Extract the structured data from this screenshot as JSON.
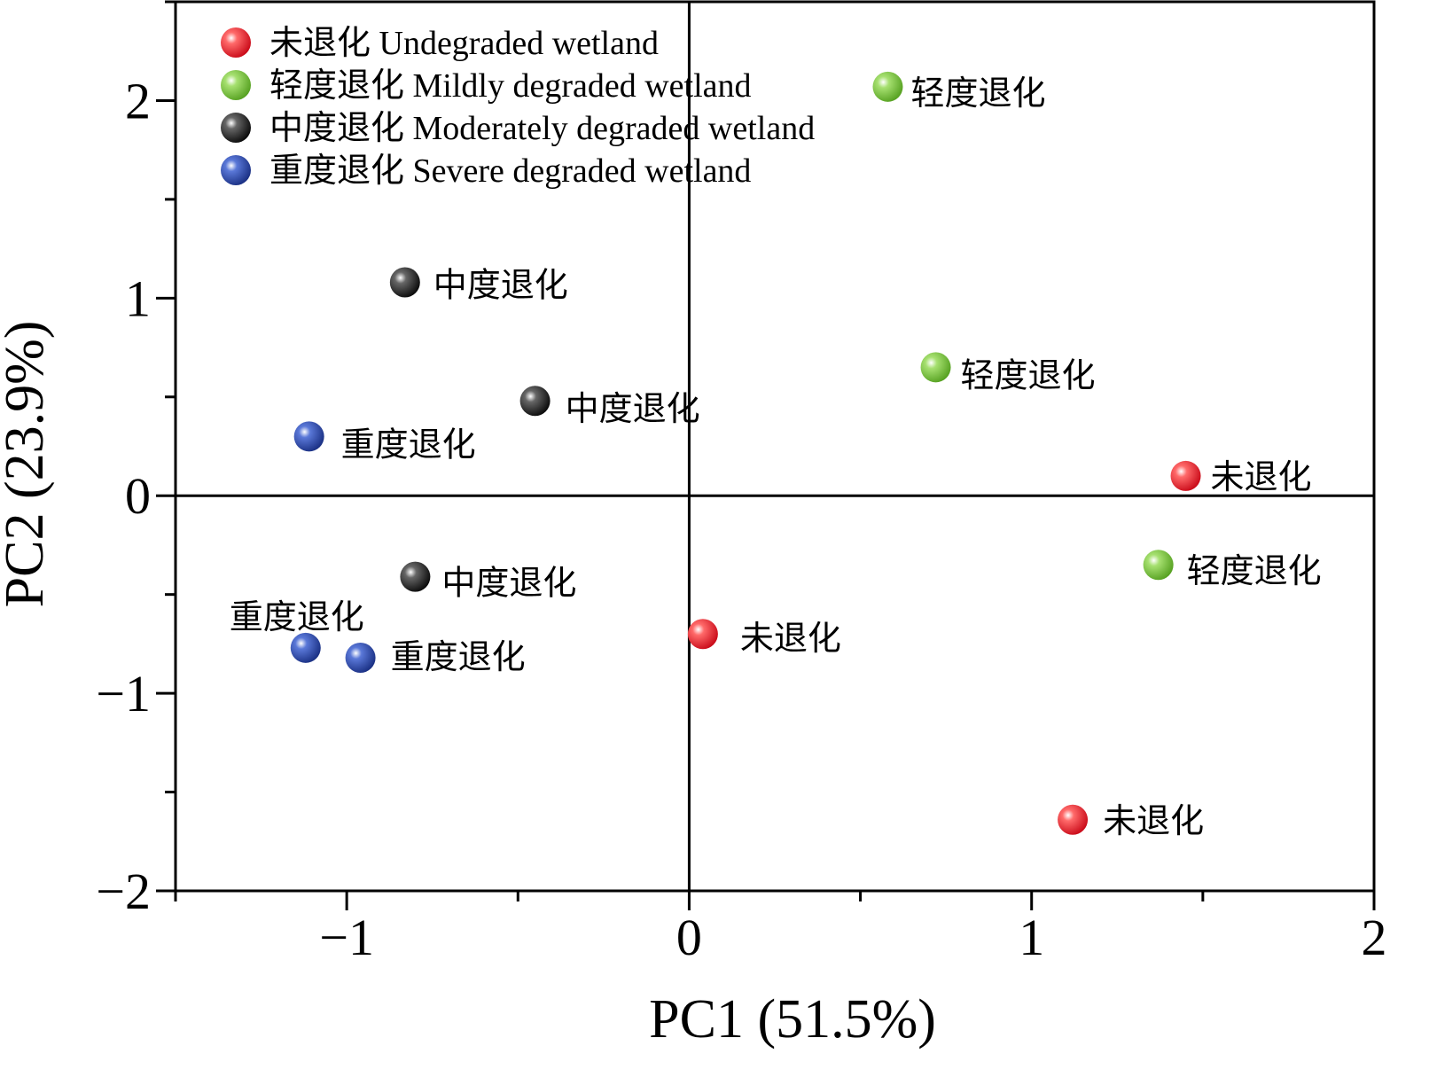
{
  "chart_data": {
    "type": "scatter",
    "xlabel": "PC1 (51.5%)",
    "ylabel": "PC2 (23.9%)",
    "xlim": [
      -1.5,
      2
    ],
    "ylim": [
      -2,
      2.5
    ],
    "x_ticks": [
      -1,
      0,
      1,
      2
    ],
    "x_tick_labels": [
      "−1",
      "0",
      "1",
      "2"
    ],
    "y_ticks": [
      -2,
      -1,
      0,
      1,
      2
    ],
    "y_tick_labels": [
      "−2",
      "−1",
      "0",
      "1",
      "2"
    ],
    "reference_lines": {
      "x": 0,
      "y": 0
    },
    "legend_position": "top-left",
    "series": [
      {
        "name": "未退化 Undegraded wetland",
        "short_name": "未退化",
        "color": "#e8141c",
        "points": [
          {
            "x": 1.45,
            "y": 0.1,
            "label": "未退化"
          },
          {
            "x": 0.04,
            "y": -0.7,
            "label": "未退化"
          },
          {
            "x": 1.12,
            "y": -1.64,
            "label": "未退化"
          }
        ]
      },
      {
        "name": "轻度退化 Mildly degraded wetland",
        "short_name": "轻度退化",
        "color": "#6cbe2c",
        "points": [
          {
            "x": 0.58,
            "y": 2.07,
            "label": "轻度退化"
          },
          {
            "x": 0.72,
            "y": 0.65,
            "label": "轻度退化"
          },
          {
            "x": 1.37,
            "y": -0.35,
            "label": "轻度退化"
          }
        ]
      },
      {
        "name": "中度退化 Moderately degraded wetland",
        "short_name": "中度退化",
        "color": "#111111",
        "points": [
          {
            "x": -0.83,
            "y": 1.08,
            "label": "中度退化"
          },
          {
            "x": -0.45,
            "y": 0.48,
            "label": "中度退化"
          },
          {
            "x": -0.8,
            "y": -0.41,
            "label": "中度退化"
          }
        ]
      },
      {
        "name": "重度退化 Severe degraded wetland",
        "short_name": "重度退化",
        "color": "#1e40a8",
        "points": [
          {
            "x": -1.11,
            "y": 0.3,
            "label": "重度退化"
          },
          {
            "x": -1.12,
            "y": -0.77,
            "label": "重度退化"
          },
          {
            "x": -0.96,
            "y": -0.82,
            "label": "重度退化"
          }
        ]
      }
    ]
  }
}
